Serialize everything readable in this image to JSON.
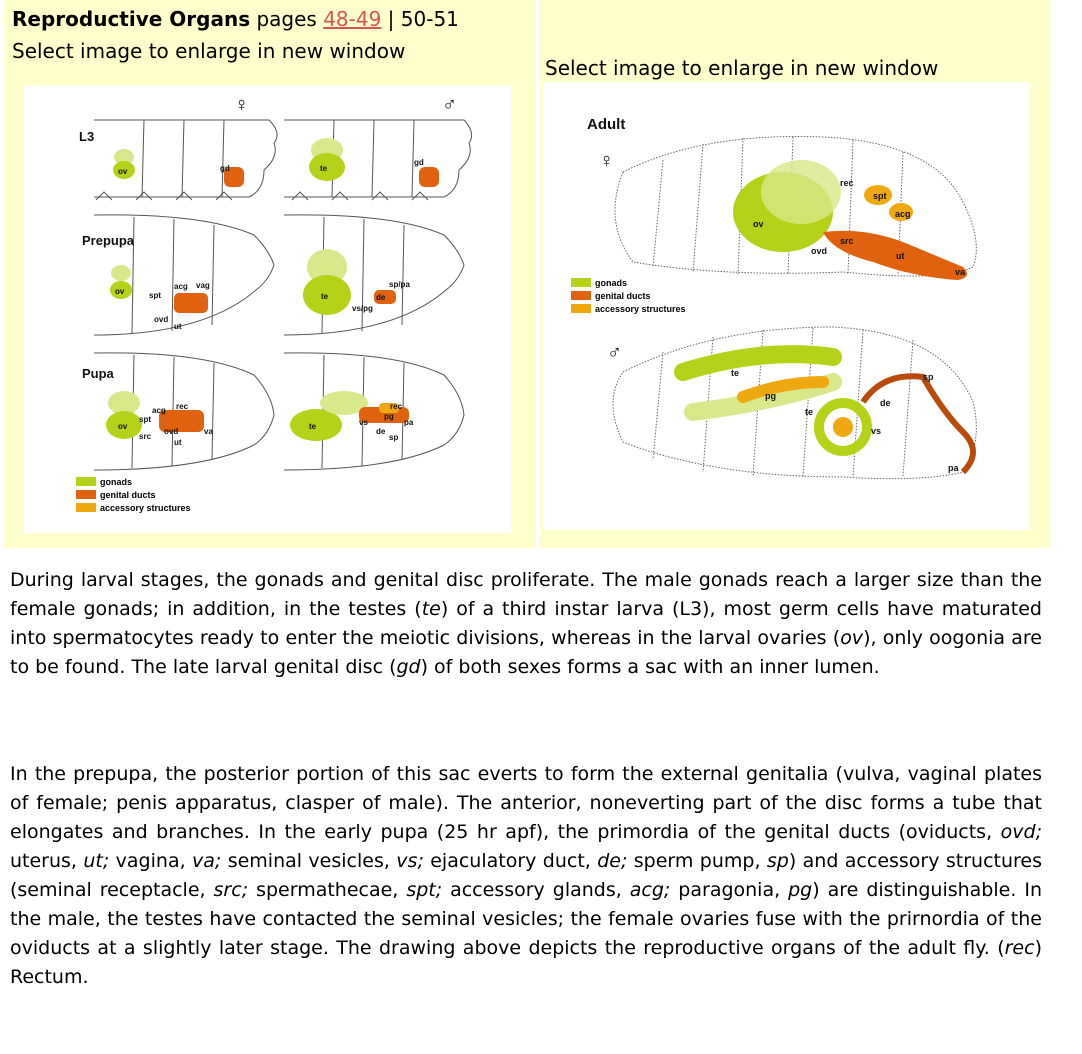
{
  "header": {
    "title_bold": "Reproductive Organs",
    "pages_label": " pages ",
    "current_pages_link": "48-49",
    "separator": " | ",
    "next_pages": "50-51",
    "instruction_left": "Select image to enlarge in new window",
    "instruction_right": "Select image to enlarge in new window"
  },
  "left_figure": {
    "female_symbol": "♀",
    "male_symbol": "♂",
    "stage_labels": [
      "L3",
      "Prepupa",
      "Pupa"
    ],
    "organ_labels": {
      "ov": "ov",
      "te": "te",
      "gd": "gd",
      "acg": "acg",
      "vag": "vag",
      "spt": "spt",
      "ovd": "ovd",
      "ut": "ut",
      "sp_pa": "sp/pa",
      "de": "de",
      "vs_pg": "vs/pg",
      "rec": "rec",
      "src": "src",
      "va": "va",
      "pg": "pg",
      "vs": "vs",
      "pa": "pa",
      "sp": "sp"
    },
    "legend": [
      "gonads",
      "genital ducts",
      "accessory structures"
    ]
  },
  "right_figure": {
    "stage_label": "Adult",
    "female_symbol": "♀",
    "male_symbol": "♂",
    "organ_labels": {
      "rec": "rec",
      "spt": "spt",
      "acg": "acg",
      "ov": "ov",
      "src": "src",
      "ovd": "ovd",
      "ut": "ut",
      "va": "va",
      "te": "te",
      "pg": "pg",
      "de": "de",
      "vs": "vs",
      "sp": "sp",
      "pa": "pa"
    },
    "legend": [
      "gonads",
      "genital ducts",
      "accessory structures"
    ]
  },
  "colors": {
    "gonads": "#b5d118",
    "genital_ducts": "#e0620f",
    "accessory_structures": "#f0a810",
    "panel_bg": "#ffffcc",
    "link": "#d9534f"
  },
  "paragraph1": [
    "During larval stages, the gonads and genital disc proliferate. The male gonads reach a larger size than the female gonads; in addition, in the testes (",
    "te",
    ") of a third instar larva (L3), most germ cells have maturated into spermatocytes ready to enter the meiotic divisions, whereas in the larval ovaries (",
    "ov",
    "), only oogonia are to be found. The late larval genital disc (",
    "gd",
    ") of both sexes forms a sac with an inner lumen."
  ],
  "paragraph2": [
    "In the prepupa, the posterior portion of this sac everts to form the external genitalia (vulva, vaginal plates of female; penis apparatus, clasper of male). The anterior, noneverting part of the disc forms a tube that elongates and branches. In the early pupa (25 hr apf), the primordia of the genital ducts (oviducts, ",
    "ovd;",
    " uterus, ",
    "ut;",
    " vagina, ",
    "va;",
    " seminal vesicles, ",
    "vs;",
    " ejaculatory duct, ",
    "de;",
    " sperm pump, ",
    "sp",
    ") and accessory structures (seminal receptacle, ",
    "src;",
    " spermathecae, ",
    "spt;",
    " accessory glands, ",
    "acg;",
    " paragonia, ",
    "pg",
    ") are distinguishable. In the male, the testes have contacted the seminal vesicles; the female ovaries fuse with the prirnordia of the oviducts at a slightly later stage. The drawing above depicts the reproductive organs of the adult fly. (",
    "rec",
    ") Rectum."
  ]
}
